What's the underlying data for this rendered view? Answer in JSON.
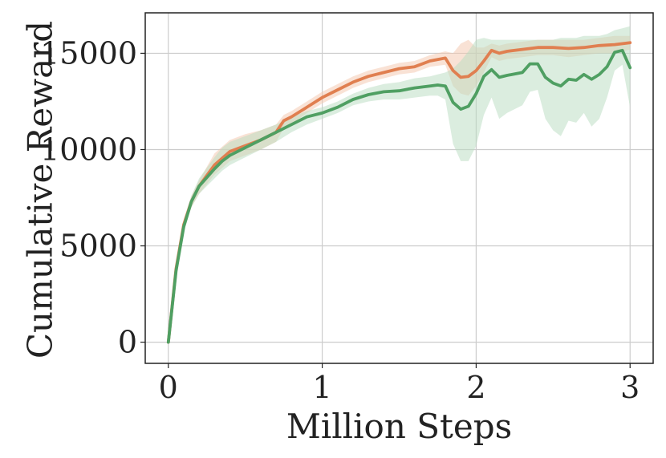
{
  "chart_data": {
    "type": "line",
    "title": "",
    "xlabel": "Million Steps",
    "ylabel": "Cumulative Reward",
    "xlim": [
      -0.15,
      3.15
    ],
    "ylim": [
      -1100,
      17100
    ],
    "x_ticks": [
      0,
      1,
      2,
      3
    ],
    "x_tick_labels": [
      "0",
      "1",
      "2",
      "3"
    ],
    "y_ticks": [
      0,
      5000,
      10000,
      15000
    ],
    "y_tick_labels": [
      "0",
      "5000",
      "10000",
      "15000"
    ],
    "grid": true,
    "legend": "none",
    "series": [
      {
        "color": "#e07f50",
        "band_color": "#f3c5ac",
        "points": [
          [
            0,
            0
          ],
          [
            0.05,
            3800
          ],
          [
            0.1,
            6100
          ],
          [
            0.15,
            7300
          ],
          [
            0.2,
            8100
          ],
          [
            0.3,
            9200
          ],
          [
            0.4,
            9900
          ],
          [
            0.5,
            10200
          ],
          [
            0.6,
            10500
          ],
          [
            0.7,
            10900
          ],
          [
            0.75,
            11500
          ],
          [
            0.8,
            11700
          ],
          [
            0.9,
            12200
          ],
          [
            1.0,
            12700
          ],
          [
            1.1,
            13100
          ],
          [
            1.2,
            13500
          ],
          [
            1.3,
            13800
          ],
          [
            1.4,
            14000
          ],
          [
            1.5,
            14200
          ],
          [
            1.6,
            14300
          ],
          [
            1.7,
            14600
          ],
          [
            1.8,
            14750
          ],
          [
            1.85,
            14100
          ],
          [
            1.9,
            13750
          ],
          [
            1.95,
            13800
          ],
          [
            2.0,
            14100
          ],
          [
            2.05,
            14600
          ],
          [
            2.1,
            15150
          ],
          [
            2.15,
            15000
          ],
          [
            2.2,
            15100
          ],
          [
            2.3,
            15200
          ],
          [
            2.4,
            15300
          ],
          [
            2.5,
            15300
          ],
          [
            2.6,
            15250
          ],
          [
            2.7,
            15300
          ],
          [
            2.8,
            15400
          ],
          [
            2.9,
            15450
          ],
          [
            3.0,
            15550
          ]
        ],
        "band": [
          [
            0,
            -200,
            200
          ],
          [
            0.05,
            3500,
            4100
          ],
          [
            0.1,
            5800,
            6400
          ],
          [
            0.15,
            7000,
            7600
          ],
          [
            0.2,
            7700,
            8400
          ],
          [
            0.3,
            8700,
            9800
          ],
          [
            0.4,
            9400,
            10500
          ],
          [
            0.5,
            9700,
            10800
          ],
          [
            0.6,
            10000,
            11000
          ],
          [
            0.7,
            10400,
            11300
          ],
          [
            0.75,
            11100,
            11800
          ],
          [
            0.8,
            11300,
            12000
          ],
          [
            0.9,
            11900,
            12500
          ],
          [
            1.0,
            12400,
            13000
          ],
          [
            1.1,
            12800,
            13400
          ],
          [
            1.2,
            13200,
            13800
          ],
          [
            1.3,
            13500,
            14100
          ],
          [
            1.4,
            13700,
            14300
          ],
          [
            1.5,
            13900,
            14500
          ],
          [
            1.6,
            14000,
            14600
          ],
          [
            1.7,
            14300,
            14900
          ],
          [
            1.8,
            14400,
            15100
          ],
          [
            1.85,
            13300,
            15000
          ],
          [
            1.9,
            12900,
            15500
          ],
          [
            1.95,
            12800,
            15700
          ],
          [
            2.0,
            13300,
            15300
          ],
          [
            2.05,
            14000,
            15300
          ],
          [
            2.1,
            14800,
            15500
          ],
          [
            2.15,
            14600,
            15400
          ],
          [
            2.2,
            14700,
            15500
          ],
          [
            2.3,
            14800,
            15600
          ],
          [
            2.4,
            14900,
            15700
          ],
          [
            2.5,
            14900,
            15700
          ],
          [
            2.6,
            14800,
            15700
          ],
          [
            2.7,
            14900,
            15700
          ],
          [
            2.8,
            15000,
            15800
          ],
          [
            2.9,
            15000,
            15900
          ],
          [
            3.0,
            15200,
            15900
          ]
        ]
      },
      {
        "color": "#4f9f62",
        "band_color": "#b7dbc0",
        "points": [
          [
            0,
            0
          ],
          [
            0.05,
            3700
          ],
          [
            0.1,
            6000
          ],
          [
            0.15,
            7300
          ],
          [
            0.2,
            8100
          ],
          [
            0.3,
            9000
          ],
          [
            0.35,
            9400
          ],
          [
            0.4,
            9700
          ],
          [
            0.5,
            10100
          ],
          [
            0.6,
            10500
          ],
          [
            0.7,
            10900
          ],
          [
            0.8,
            11300
          ],
          [
            0.9,
            11700
          ],
          [
            1.0,
            11900
          ],
          [
            1.1,
            12200
          ],
          [
            1.2,
            12600
          ],
          [
            1.3,
            12850
          ],
          [
            1.4,
            13000
          ],
          [
            1.5,
            13050
          ],
          [
            1.6,
            13200
          ],
          [
            1.7,
            13300
          ],
          [
            1.75,
            13350
          ],
          [
            1.8,
            13300
          ],
          [
            1.85,
            12450
          ],
          [
            1.9,
            12100
          ],
          [
            1.95,
            12250
          ],
          [
            2.0,
            12900
          ],
          [
            2.05,
            13800
          ],
          [
            2.1,
            14150
          ],
          [
            2.15,
            13750
          ],
          [
            2.2,
            13850
          ],
          [
            2.3,
            14000
          ],
          [
            2.35,
            14450
          ],
          [
            2.4,
            14450
          ],
          [
            2.45,
            13750
          ],
          [
            2.5,
            13450
          ],
          [
            2.55,
            13300
          ],
          [
            2.6,
            13650
          ],
          [
            2.65,
            13600
          ],
          [
            2.7,
            13900
          ],
          [
            2.75,
            13650
          ],
          [
            2.8,
            13900
          ],
          [
            2.85,
            14300
          ],
          [
            2.9,
            15050
          ],
          [
            2.95,
            15150
          ],
          [
            3.0,
            14250
          ]
        ],
        "band": [
          [
            0,
            -200,
            200
          ],
          [
            0.05,
            3400,
            4000
          ],
          [
            0.1,
            5700,
            6300
          ],
          [
            0.15,
            7000,
            7600
          ],
          [
            0.2,
            7700,
            8500
          ],
          [
            0.3,
            8500,
            9600
          ],
          [
            0.35,
            8900,
            10100
          ],
          [
            0.4,
            9200,
            10400
          ],
          [
            0.5,
            9600,
            10700
          ],
          [
            0.6,
            10000,
            11000
          ],
          [
            0.7,
            10400,
            11300
          ],
          [
            0.8,
            10900,
            11700
          ],
          [
            0.9,
            11300,
            12000
          ],
          [
            1.0,
            11600,
            12200
          ],
          [
            1.1,
            11900,
            12500
          ],
          [
            1.2,
            12300,
            12900
          ],
          [
            1.3,
            12500,
            13200
          ],
          [
            1.4,
            12600,
            13400
          ],
          [
            1.5,
            12600,
            13500
          ],
          [
            1.6,
            12700,
            13700
          ],
          [
            1.7,
            12800,
            13800
          ],
          [
            1.75,
            12800,
            13900
          ],
          [
            1.8,
            12600,
            14000
          ],
          [
            1.85,
            10300,
            14200
          ],
          [
            1.9,
            9400,
            14600
          ],
          [
            1.95,
            9400,
            15100
          ],
          [
            2.0,
            10200,
            15700
          ],
          [
            2.05,
            11800,
            15800
          ],
          [
            2.1,
            12700,
            15700
          ],
          [
            2.15,
            11600,
            15700
          ],
          [
            2.2,
            11900,
            15700
          ],
          [
            2.3,
            12300,
            15700
          ],
          [
            2.35,
            13000,
            15700
          ],
          [
            2.4,
            13100,
            15700
          ],
          [
            2.45,
            11600,
            15700
          ],
          [
            2.5,
            11000,
            15700
          ],
          [
            2.55,
            10700,
            15800
          ],
          [
            2.6,
            11500,
            15800
          ],
          [
            2.65,
            11400,
            15800
          ],
          [
            2.7,
            11900,
            15900
          ],
          [
            2.75,
            11200,
            15900
          ],
          [
            2.8,
            11600,
            15900
          ],
          [
            2.85,
            12700,
            16000
          ],
          [
            2.9,
            14100,
            16200
          ],
          [
            2.95,
            14400,
            16300
          ],
          [
            3.0,
            12200,
            16400
          ]
        ]
      }
    ]
  }
}
